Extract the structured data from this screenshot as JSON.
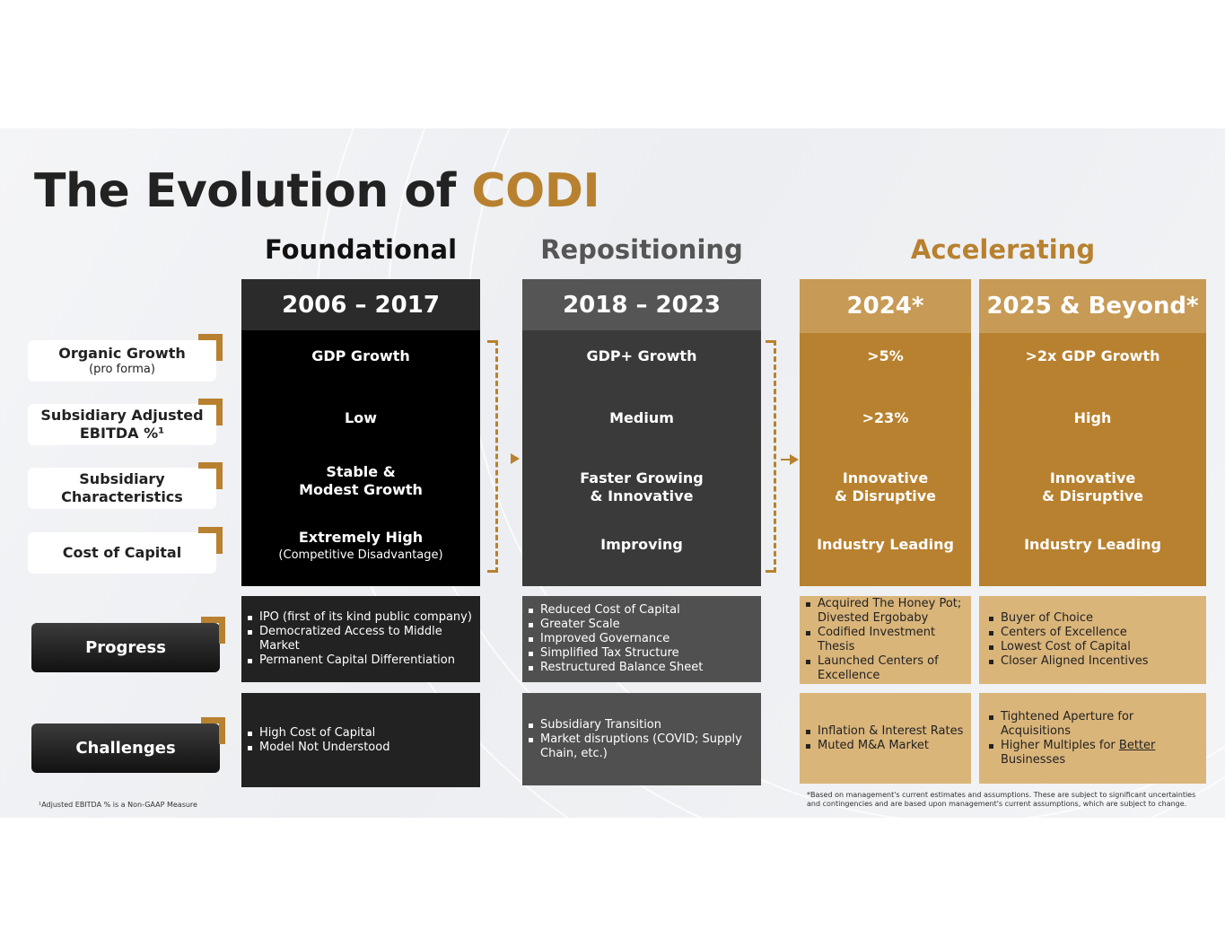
{
  "title": {
    "text": "The Evolution of ",
    "accent": "CODI"
  },
  "phases": {
    "foundational": "Foundational",
    "repositioning": "Repositioning",
    "accelerating": "Accelerating"
  },
  "colors": {
    "accent": "#b8812f",
    "dark": "#222222",
    "black": "#000000",
    "gray": "#3c3c3c",
    "gold": "#b8812f",
    "tan": "#dab57a"
  },
  "rows": {
    "organic": {
      "label": "Organic Growth",
      "sub": "(pro forma)"
    },
    "ebitda": {
      "label": "Subsidiary Adjusted EBITDA %¹"
    },
    "characteristics": {
      "label": "Subsidiary Characteristics"
    },
    "cost": {
      "label": "Cost of Capital"
    },
    "progress": {
      "label": "Progress"
    },
    "challenges": {
      "label": "Challenges"
    }
  },
  "columns": {
    "c1": {
      "header": "2006 – 2017",
      "organic": "GDP Growth",
      "ebitda": "Low",
      "characteristics_1": "Stable &",
      "characteristics_2": "Modest Growth",
      "cost": "Extremely High",
      "cost_sub": "(Competitive Disadvantage)",
      "progress": [
        "IPO (first of its kind public company)",
        "Democratized Access to Middle Market",
        "Permanent Capital Differentiation"
      ],
      "challenges": [
        "High Cost of Capital",
        "Model Not Understood"
      ]
    },
    "c2": {
      "header": "2018 – 2023",
      "organic": "GDP+ Growth",
      "ebitda": "Medium",
      "characteristics_1": "Faster Growing",
      "characteristics_2": "& Innovative",
      "cost": "Improving",
      "progress": [
        "Reduced Cost of Capital",
        "Greater Scale",
        "Improved Governance",
        "Simplified Tax Structure",
        "Restructured Balance Sheet"
      ],
      "challenges": [
        "Subsidiary Transition",
        "Market disruptions (COVID; Supply Chain, etc.)"
      ]
    },
    "c3": {
      "header": "2024*",
      "organic": ">5%",
      "ebitda": ">23%",
      "characteristics_1": "Innovative",
      "characteristics_2": "& Disruptive",
      "cost": "Industry Leading",
      "progress": [
        "Acquired The Honey Pot; Divested Ergobaby",
        "Codified Investment Thesis",
        "Launched Centers of Excellence"
      ],
      "challenges": [
        "Inflation & Interest Rates",
        "Muted M&A Market"
      ]
    },
    "c4": {
      "header": "2025 & Beyond*",
      "organic": ">2x GDP Growth",
      "ebitda": "High",
      "characteristics_1": "Innovative",
      "characteristics_2": "& Disruptive",
      "cost": "Industry Leading",
      "progress": [
        "Buyer of Choice",
        "Centers of Excellence",
        "Lowest Cost of Capital",
        "Closer Aligned Incentives"
      ],
      "challenges_1": "Tightened Aperture for Acquisitions",
      "challenges_2a": "Higher Multiples for ",
      "challenges_2b": "Better",
      "challenges_2c": "Businesses"
    }
  },
  "footnotes": {
    "left": "¹Adjusted EBITDA % is a Non-GAAP Measure",
    "right": "*Based on management's current estimates and assumptions. These are subject to significant uncertainties and contingencies and are based upon management's current assumptions, which are subject to change."
  }
}
